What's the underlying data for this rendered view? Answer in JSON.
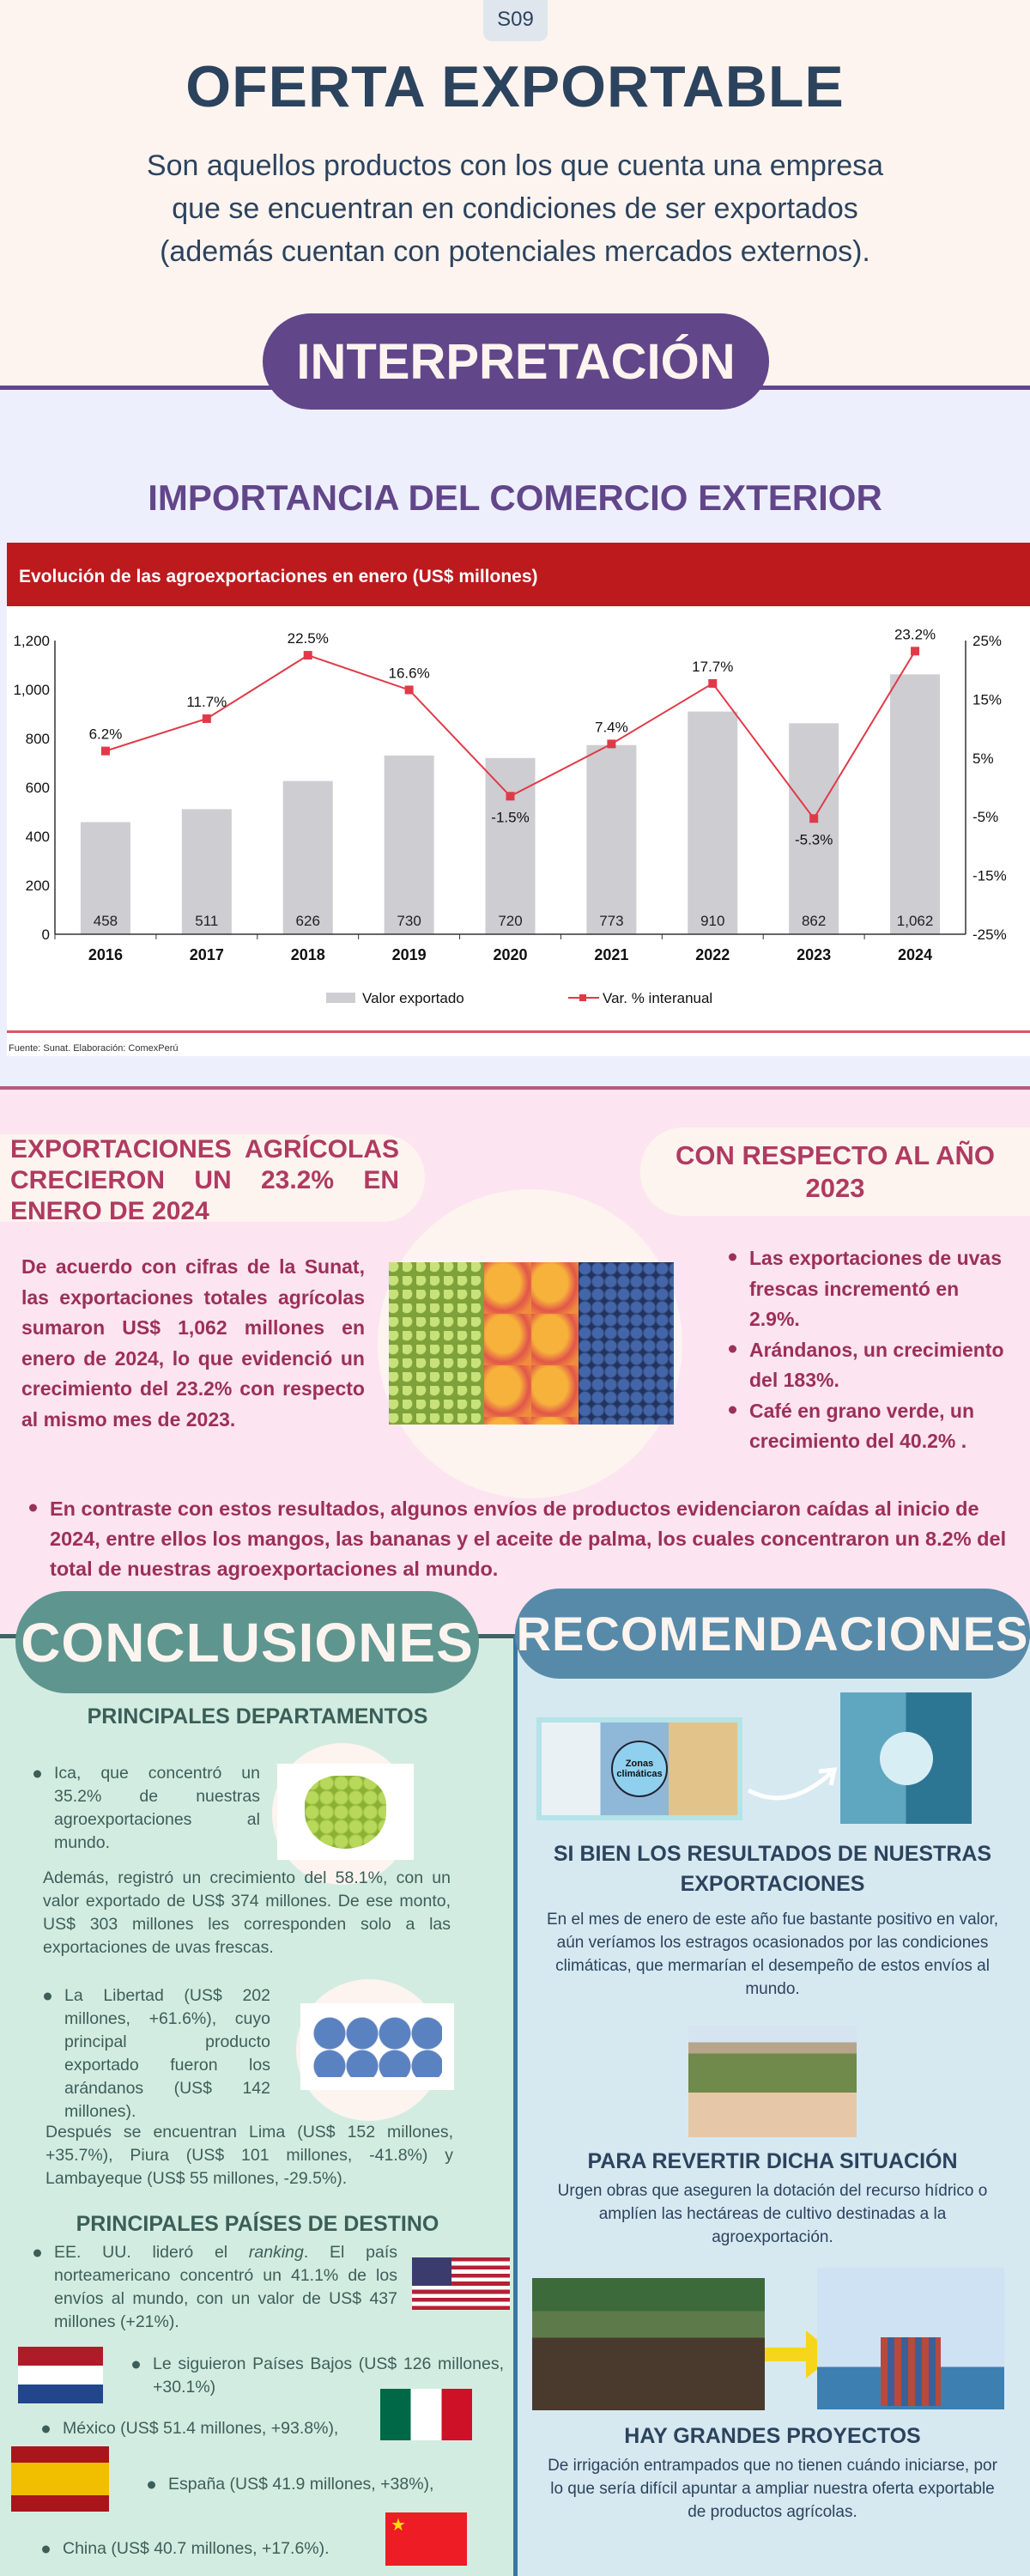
{
  "header": {
    "badge": "S09",
    "title": "OFERTA EXPORTABLE",
    "subtitle": "Son aquellos productos con los que cuenta una empresa que se encuentran en condiciones de ser exportados (además cuentan con potenciales mercados externos)."
  },
  "interpretacion": {
    "pill": "INTERPRETACIÓN",
    "heading": "IMPORTANCIA DEL COMERCIO EXTERIOR"
  },
  "chart_data": {
    "type": "bar",
    "title": "Evolución de las agroexportaciones en enero (US$ millones)",
    "categories": [
      "2016",
      "2017",
      "2018",
      "2019",
      "2020",
      "2021",
      "2022",
      "2023",
      "2024"
    ],
    "series": [
      {
        "name": "Valor exportado",
        "type": "bar",
        "axis": "left",
        "values": [
          458,
          511,
          626,
          730,
          720,
          773,
          910,
          862,
          1062
        ],
        "labels": [
          "458",
          "511",
          "626",
          "730",
          "720",
          "773",
          "910",
          "862",
          "1,062"
        ],
        "color": "#cdcdd2"
      },
      {
        "name": "Var. % interanual",
        "type": "line",
        "axis": "right",
        "values": [
          6.2,
          11.7,
          22.5,
          16.6,
          -1.5,
          7.4,
          17.7,
          -5.3,
          23.2
        ],
        "labels": [
          "6.2%",
          "11.7%",
          "22.5%",
          "16.6%",
          "-1.5%",
          "7.4%",
          "17.7%",
          "-5.3%",
          "23.2%"
        ],
        "color": "#e03a48"
      }
    ],
    "ylim_left": [
      0,
      1200
    ],
    "yticks_left": [
      "0",
      "200",
      "400",
      "600",
      "800",
      "1,000",
      "1,200"
    ],
    "ylim_right": [
      -25,
      25
    ],
    "yticks_right": [
      "-25%",
      "-15%",
      "-5%",
      "5%",
      "15%",
      "25%"
    ],
    "legend": "bottom",
    "grid": false,
    "header_color": "#bd1a1e",
    "source": "Fuente: Sunat. Elaboración: ComexPerú"
  },
  "agricola": {
    "title": "EXPORTACIONES AGRÍCOLAS CRECIERON UN 23.2% EN ENERO DE 2024",
    "paragraph": "De acuerdo con cifras de la Sunat, las exportaciones totales agrícolas sumaron US$ 1,062 millones en enero de 2024, lo que evidenció un crecimiento del 23.2% con respecto al mismo mes de 2023.",
    "respecto_title": "CON RESPECTO AL AÑO 2023",
    "bullets": [
      "Las exportaciones de uvas frescas incrementó en 2.9%.",
      "Arándanos, un crecimiento del 183%.",
      " Café en grano verde, un crecimiento del 40.2% ."
    ],
    "contrast": "En contraste con estos resultados, algunos envíos de productos evidenciaron caídas al inicio de 2024, entre ellos los mangos, las bananas y el aceite de palma, los cuales concentraron un 8.2% del total de nuestras agroexportaciones al mundo."
  },
  "conclusiones": {
    "pill": "CONCLUSIONES",
    "dept_heading": "PRINCIPALES DEPARTAMENTOS",
    "ica": "Ica, que concentró un 35.2% de nuestras agroexportaciones al mundo.",
    "ademas": "Además, registró un crecimiento del 58.1%, con un valor exportado de US$ 374 millones. De ese monto, US$ 303 millones les corresponden solo a las exportaciones de uvas frescas.",
    "libertad": "La Libertad (US$ 202 millones, +61.6%), cuyo principal producto exportado fueron los arándanos (US$ 142 millones).",
    "despues": "Después se encuentran Lima (US$ 152 millones, +35.7%), Piura (US$ 101 millones, -41.8%) y Lambayeque (US$ 55 millones, -29.5%).",
    "paises_heading": "PRINCIPALES PAÍSES DE DESTINO",
    "usa_pre": "EE. UU. lideró el ",
    "usa_em": "ranking",
    "usa_post": ". El país norteamericano concentró un 41.1% de los envíos al mundo, con un valor de US$ 437 millones (+21%).",
    "paises_bajos": "Le siguieron Países Bajos (US$ 126 millones, +30.1%)",
    "mexico": "México (US$ 51.4 millones, +93.8%),",
    "espana": "España (US$ 41.9 millones, +38%),",
    "china": "China (US$ 40.7 millones, +17.6%)."
  },
  "recomendaciones": {
    "pill": "RECOMENDACIONES",
    "climate_image_label": "Zonas climáticas",
    "h1": "SI BIEN LOS RESULTADOS DE NUESTRAS EXPORTACIONES",
    "p1": "En el mes de enero de este año fue bastante positivo en valor, aún veríamos los estragos ocasionados por las condiciones climáticas, que mermarían el desempeño de estos envíos al mundo.",
    "h2": "PARA REVERTIR DICHA SITUACIÓN",
    "p2": "Urgen obras que aseguren la dotación del recurso hídrico o amplíen las hectáreas de cultivo destinadas a la agroexportación.",
    "h3": "HAY GRANDES PROYECTOS",
    "p3": "De irrigación entrampados que no tienen cuándo iniciarse, por lo que sería difícil apuntar a ampliar nuestra oferta exportable de productos agrícolas."
  },
  "colors": {
    "navy": "#2c435e",
    "purple": "#62468a",
    "pink_text": "#b03a62",
    "teal": "#5e958f",
    "steel_blue": "#568aa8"
  }
}
